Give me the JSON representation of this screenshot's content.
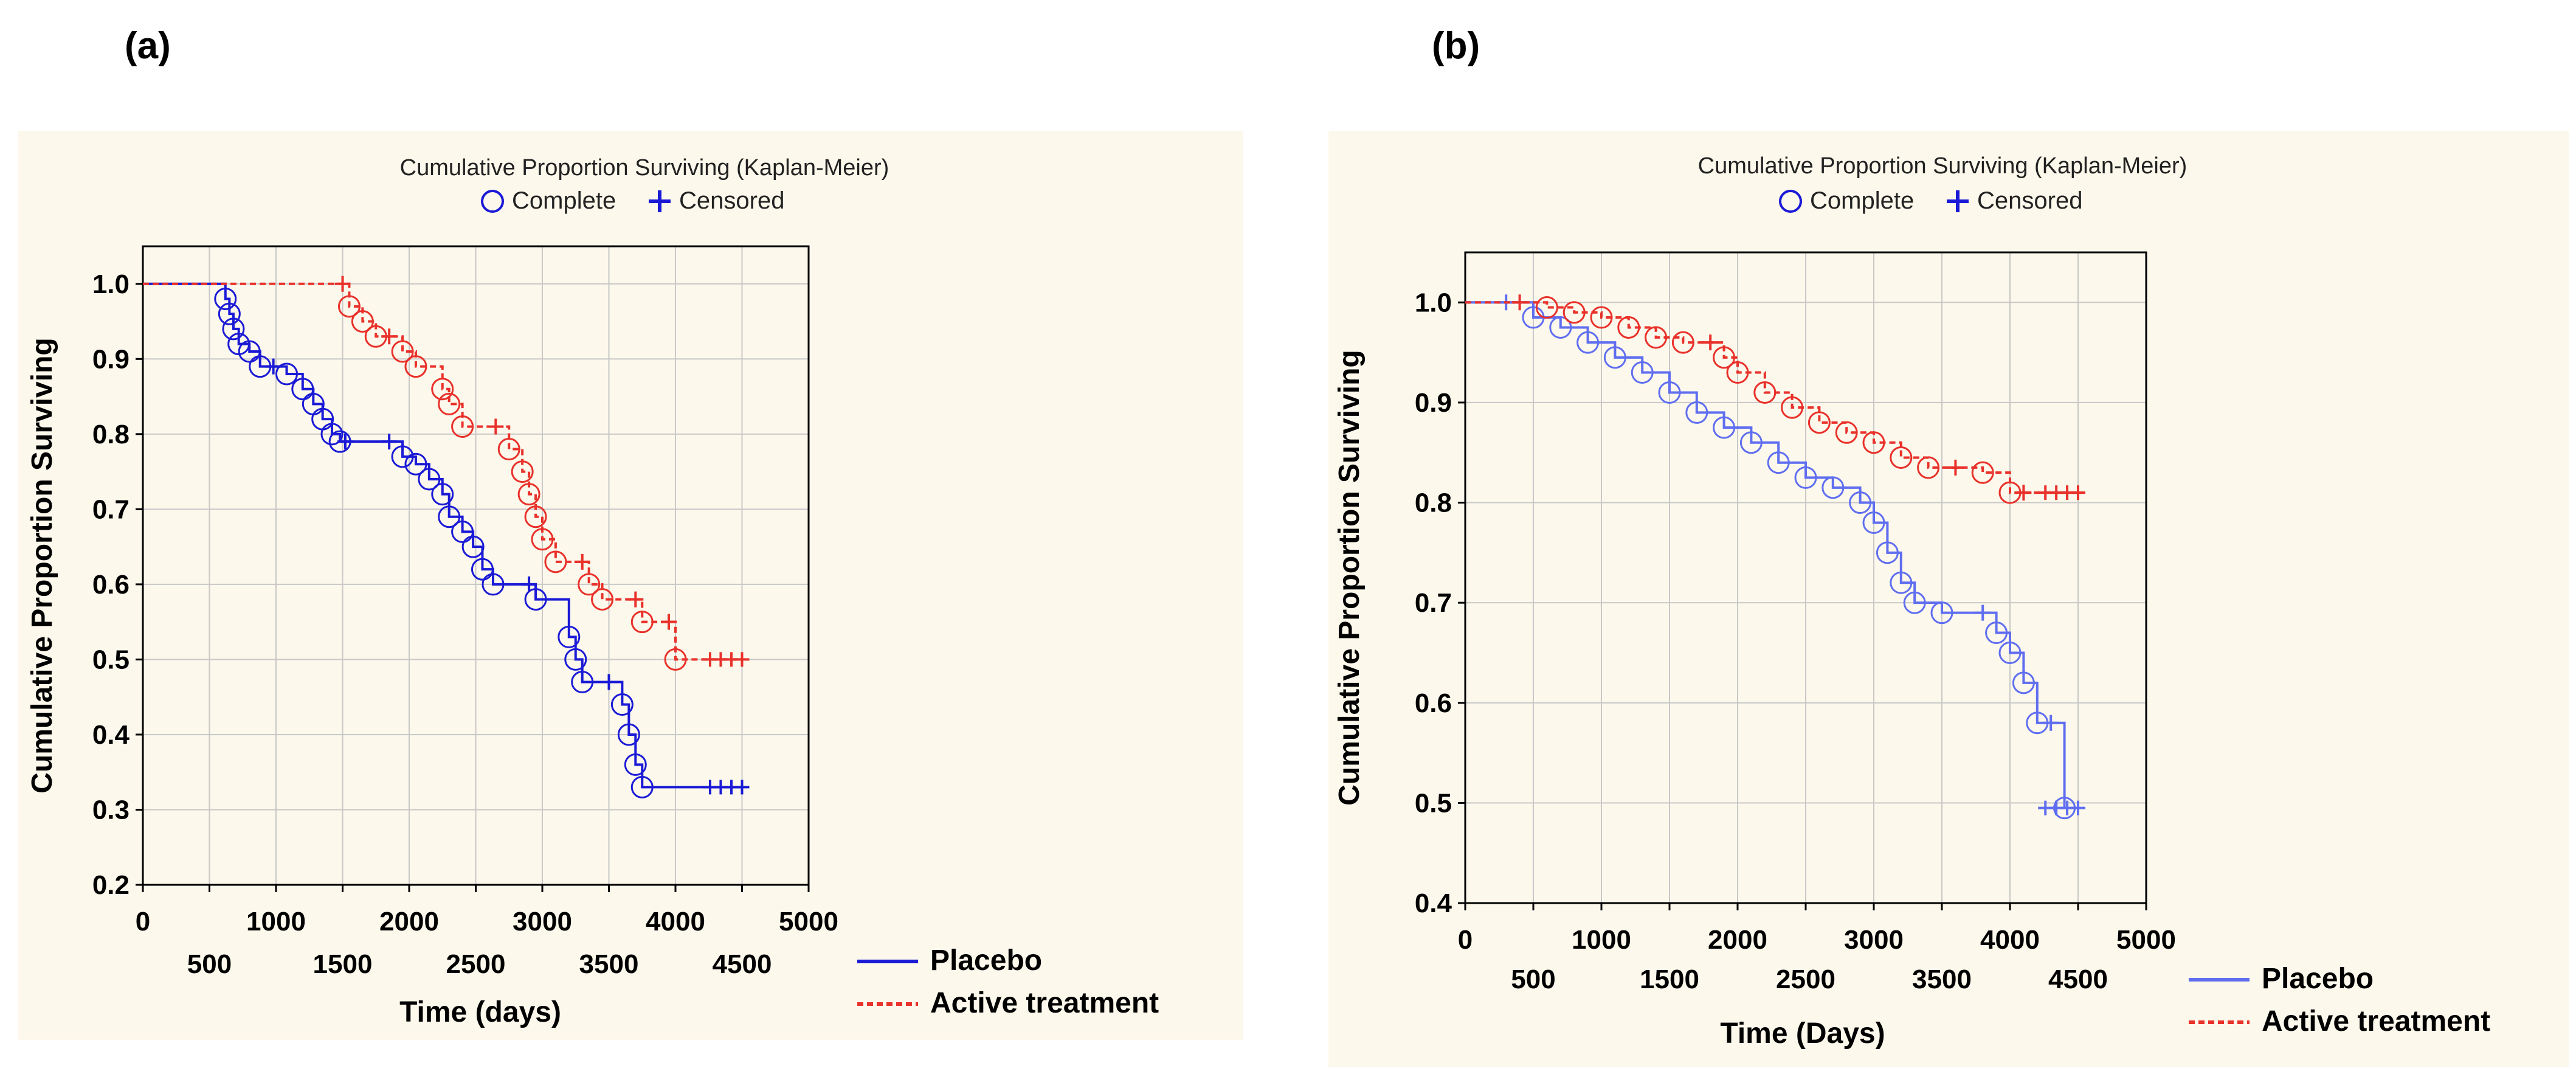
{
  "panels": [
    {
      "label": "(a)"
    },
    {
      "label": "(b)"
    }
  ],
  "chart_data": [
    {
      "type": "line",
      "title": "Cumulative Proportion Surviving (Kaplan-Meier)",
      "legend_markers": {
        "complete": "Complete",
        "censored": "Censored"
      },
      "xlabel": "Time (days)",
      "ylabel": "Cumulative Proportion Surviving",
      "xlim": [
        0,
        5000
      ],
      "ylim": [
        0.2,
        1.05
      ],
      "xticks_top": [
        "0",
        "1000",
        "2000",
        "3000",
        "4000",
        "5000"
      ],
      "xticks_bottom": [
        "500",
        "1500",
        "2500",
        "3500",
        "4500"
      ],
      "yticks": [
        "0.2",
        "0.3",
        "0.4",
        "0.5",
        "0.6",
        "0.7",
        "0.8",
        "0.9",
        "1.0"
      ],
      "series": [
        {
          "name": "Placebo",
          "color": "#1a1ad6",
          "style": "solid",
          "x": [
            0,
            620,
            650,
            680,
            720,
            800,
            880,
            980,
            1080,
            1200,
            1280,
            1350,
            1420,
            1480,
            1520,
            1850,
            1950,
            2050,
            2150,
            2250,
            2300,
            2400,
            2480,
            2550,
            2630,
            2900,
            2950,
            3200,
            3250,
            3300,
            3500,
            3600,
            3650,
            3700,
            3750,
            4500
          ],
          "y": [
            1.0,
            0.98,
            0.96,
            0.94,
            0.92,
            0.91,
            0.89,
            0.89,
            0.88,
            0.86,
            0.84,
            0.82,
            0.8,
            0.79,
            0.79,
            0.79,
            0.77,
            0.76,
            0.74,
            0.72,
            0.69,
            0.67,
            0.65,
            0.62,
            0.6,
            0.6,
            0.58,
            0.53,
            0.5,
            0.47,
            0.47,
            0.44,
            0.4,
            0.36,
            0.33,
            0.33
          ]
        },
        {
          "name": "Active treatment",
          "color": "#e8312a",
          "style": "dashed",
          "x": [
            0,
            1500,
            1550,
            1650,
            1750,
            1850,
            1950,
            2050,
            2250,
            2300,
            2400,
            2650,
            2750,
            2850,
            2900,
            2950,
            3000,
            3100,
            3300,
            3350,
            3450,
            3700,
            3750,
            3950,
            4000,
            4500
          ],
          "y": [
            1.0,
            1.0,
            0.97,
            0.95,
            0.93,
            0.93,
            0.91,
            0.89,
            0.86,
            0.84,
            0.81,
            0.81,
            0.78,
            0.75,
            0.72,
            0.69,
            0.66,
            0.63,
            0.63,
            0.6,
            0.58,
            0.58,
            0.55,
            0.55,
            0.5,
            0.5
          ]
        }
      ],
      "legend": [
        "Placebo",
        "Active treatment"
      ]
    },
    {
      "type": "line",
      "title": "Cumulative Proportion Surviving (Kaplan-Meier)",
      "legend_markers": {
        "complete": "Complete",
        "censored": "Censored"
      },
      "xlabel": "Time (Days)",
      "ylabel": "Cumulative Proportion Surviving",
      "xlim": [
        0,
        5000
      ],
      "ylim": [
        0.4,
        1.05
      ],
      "xticks_top": [
        "0",
        "1000",
        "2000",
        "3000",
        "4000",
        "5000"
      ],
      "xticks_bottom": [
        "500",
        "1500",
        "2500",
        "3500",
        "4500"
      ],
      "yticks": [
        "0.4",
        "0.5",
        "0.6",
        "0.7",
        "0.8",
        "0.9",
        "1.0"
      ],
      "series": [
        {
          "name": "Placebo",
          "color": "#5f6ef0",
          "style": "solid",
          "x": [
            0,
            300,
            500,
            700,
            900,
            1100,
            1300,
            1500,
            1700,
            1900,
            2100,
            2300,
            2500,
            2700,
            2900,
            3000,
            3100,
            3200,
            3300,
            3500,
            3800,
            3900,
            4000,
            4100,
            4200,
            4300,
            4400,
            4500
          ],
          "y": [
            1.0,
            1.0,
            0.985,
            0.975,
            0.96,
            0.945,
            0.93,
            0.91,
            0.89,
            0.875,
            0.86,
            0.84,
            0.825,
            0.815,
            0.8,
            0.78,
            0.75,
            0.72,
            0.7,
            0.69,
            0.69,
            0.67,
            0.65,
            0.62,
            0.58,
            0.58,
            0.495,
            0.495
          ]
        },
        {
          "name": "Active treatment",
          "color": "#e8312a",
          "style": "dashed",
          "x": [
            0,
            400,
            600,
            800,
            1000,
            1200,
            1400,
            1600,
            1800,
            1900,
            2000,
            2200,
            2400,
            2600,
            2800,
            3000,
            3200,
            3400,
            3600,
            3800,
            4000,
            4100,
            4500
          ],
          "y": [
            1.0,
            1.0,
            0.995,
            0.99,
            0.985,
            0.975,
            0.965,
            0.96,
            0.96,
            0.945,
            0.93,
            0.91,
            0.895,
            0.88,
            0.87,
            0.86,
            0.845,
            0.835,
            0.835,
            0.83,
            0.81,
            0.81,
            0.81
          ]
        }
      ],
      "legend": [
        "Placebo",
        "Active treatment"
      ]
    }
  ]
}
